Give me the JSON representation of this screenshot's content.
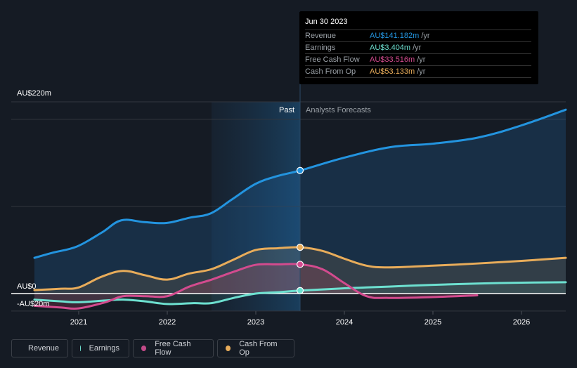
{
  "tooltip": {
    "date": "Jun 30 2023",
    "rows": [
      {
        "label": "Revenue",
        "value": "AU$141.182m",
        "unit": "/yr",
        "color": "#2394df"
      },
      {
        "label": "Earnings",
        "value": "AU$3.404m",
        "unit": "/yr",
        "color": "#6de0d0"
      },
      {
        "label": "Free Cash Flow",
        "value": "AU$33.516m",
        "unit": "/yr",
        "color": "#d34b8e"
      },
      {
        "label": "Cash From Op",
        "value": "AU$53.133m",
        "unit": "/yr",
        "color": "#e8ac5a"
      }
    ]
  },
  "legend": [
    {
      "label": "Revenue",
      "color": "#2394df"
    },
    {
      "label": "Earnings",
      "color": "#6de0d0"
    },
    {
      "label": "Free Cash Flow",
      "color": "#c24a88"
    },
    {
      "label": "Cash From Op",
      "color": "#e8ac5a"
    }
  ],
  "chart_data": {
    "type": "line",
    "title": "",
    "xlabel": "",
    "ylabel": "",
    "y_tick_labels": [
      "AU$220m",
      "AU$0",
      "-AU$20m"
    ],
    "x_tick_labels": [
      "2021",
      "2022",
      "2023",
      "2024",
      "2025",
      "2026"
    ],
    "x_ticks": [
      2021,
      2022,
      2023,
      2024,
      2025,
      2026
    ],
    "xlim": [
      2020.5,
      2026.5
    ],
    "ylim": [
      -20,
      220
    ],
    "gridlines": [
      -20,
      0,
      100,
      200,
      220
    ],
    "grid": true,
    "divider_x": 2023.5,
    "past_label": "Past",
    "forecast_label": "Analysts Forecasts",
    "highlight_start": 2022.5,
    "series": [
      {
        "name": "Revenue",
        "color": "#2394df",
        "x": [
          2020.5,
          2020.71,
          2020.98,
          2021.26,
          2021.48,
          2021.74,
          2021.99,
          2022.25,
          2022.49,
          2022.73,
          2023.0,
          2023.25,
          2023.5,
          2024.0,
          2024.52,
          2025.0,
          2025.51,
          2026.0,
          2026.5
        ],
        "values": [
          41,
          47,
          54,
          70,
          84,
          82,
          81,
          87,
          92,
          108,
          126,
          135,
          141.2,
          156,
          168,
          172,
          179,
          193,
          211
        ],
        "marker_at": 2023.5
      },
      {
        "name": "Earnings",
        "color": "#6de0d0",
        "x": [
          2020.5,
          2020.8,
          2021.0,
          2021.3,
          2021.5,
          2021.75,
          2022.0,
          2022.3,
          2022.5,
          2022.75,
          2023.0,
          2023.25,
          2023.5,
          2024.0,
          2024.5,
          2025.0,
          2025.5,
          2026.0,
          2026.5
        ],
        "values": [
          -7,
          -9,
          -10,
          -8,
          -7,
          -9,
          -12,
          -11,
          -11,
          -5,
          0,
          1.5,
          3.4,
          6,
          8,
          10,
          11.5,
          12.5,
          13
        ],
        "marker_at": 2023.5
      },
      {
        "name": "Free Cash Flow",
        "color": "#d34b8e",
        "x": [
          2020.5,
          2020.8,
          2021.0,
          2021.3,
          2021.5,
          2021.75,
          2022.0,
          2022.25,
          2022.5,
          2022.75,
          2023.0,
          2023.25,
          2023.5,
          2023.75,
          2024.0,
          2024.25,
          2024.5,
          2025.0,
          2025.5
        ],
        "values": [
          -14,
          -16,
          -17,
          -10,
          -3,
          -3,
          -3,
          8,
          16,
          25,
          33,
          33.5,
          33.5,
          28,
          12,
          -3,
          -5,
          -4,
          -2
        ],
        "marker_at": 2023.5
      },
      {
        "name": "Cash From Op",
        "color": "#e8ac5a",
        "x": [
          2020.5,
          2020.8,
          2021.0,
          2021.25,
          2021.5,
          2021.75,
          2022.0,
          2022.25,
          2022.5,
          2022.75,
          2023.0,
          2023.25,
          2023.5,
          2023.75,
          2024.0,
          2024.25,
          2024.5,
          2025.0,
          2025.5,
          2026.0,
          2026.5
        ],
        "values": [
          4,
          5.5,
          7,
          19,
          26,
          21,
          16,
          23,
          28,
          39,
          50,
          52,
          53.1,
          49,
          40,
          32,
          30,
          32,
          34.5,
          37.5,
          41
        ],
        "marker_at": 2023.5
      }
    ]
  }
}
